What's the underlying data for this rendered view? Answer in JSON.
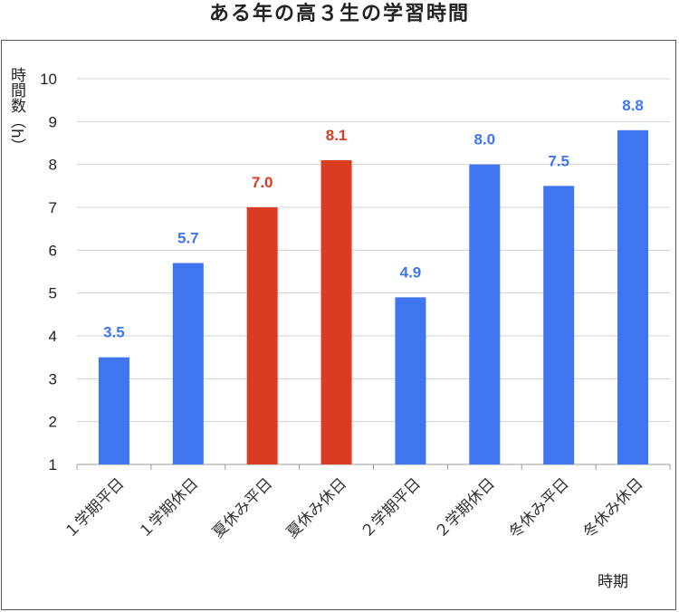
{
  "chart_data": {
    "type": "bar",
    "title": "ある年の高３生の学習時間",
    "ylabel": "時間数（h）",
    "xlabel": "時期",
    "categories": [
      "１学期平日",
      "１学期休日",
      "夏休み平日",
      "夏休み休日",
      "２学期平日",
      "２学期休日",
      "冬休み平日",
      "冬休み休日"
    ],
    "values": [
      3.5,
      5.7,
      7.0,
      8.1,
      4.9,
      8.0,
      7.5,
      8.8
    ],
    "value_labels": [
      "3.5",
      "5.7",
      "7.0",
      "8.1",
      "4.9",
      "8.0",
      "7.5",
      "8.8"
    ],
    "ylim": [
      1,
      10
    ],
    "yticks": [
      "1",
      "2",
      "3",
      "4",
      "5",
      "6",
      "7",
      "8",
      "9",
      "10"
    ],
    "grid": true,
    "colors": {
      "default": "#4075f0",
      "highlight": "#d93b23",
      "highlighted_categories": [
        "夏休み平日",
        "夏休み休日"
      ]
    }
  }
}
